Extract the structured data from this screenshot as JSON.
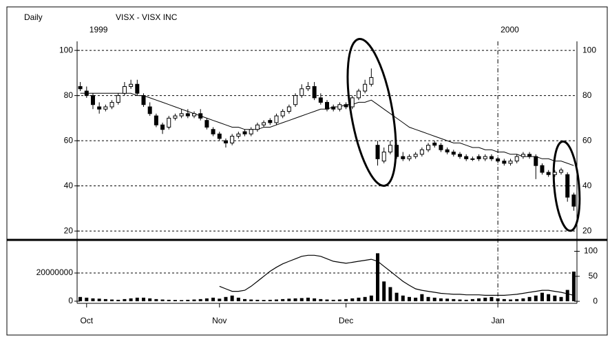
{
  "chart_data": [
    {
      "type": "candlestick",
      "period": "Daily",
      "title": "VISX - VISX INC",
      "xlim": [
        -0.5,
        78.5
      ],
      "xticks": [
        {
          "value": 1,
          "label": "Oct"
        },
        {
          "value": 22,
          "label": "Nov"
        },
        {
          "value": 42,
          "label": "Dec"
        },
        {
          "value": 66,
          "label": "Jan"
        }
      ],
      "year_ticks": [
        {
          "value": 1,
          "label": "1999"
        },
        {
          "value": 66,
          "label": "2000"
        }
      ],
      "ylim": [
        17,
        104
      ],
      "yticks": [
        20,
        40,
        60,
        80,
        100
      ],
      "grid": true,
      "color": "#000000",
      "open": [
        84,
        82,
        80,
        75,
        74,
        75,
        77,
        81,
        84,
        85,
        80,
        75,
        71,
        67,
        66,
        70,
        71,
        72,
        71,
        72,
        69,
        65,
        63,
        60,
        59,
        62,
        64,
        63,
        65,
        67,
        69,
        68,
        71,
        73,
        76,
        80,
        83,
        84,
        79,
        77,
        75,
        74,
        76,
        75,
        79,
        82,
        85,
        58,
        51,
        55,
        58,
        53,
        52,
        53,
        54,
        56,
        59,
        58,
        56,
        55,
        54,
        53,
        52,
        53,
        52,
        53,
        52,
        51,
        50,
        51,
        53,
        54,
        53,
        49,
        46,
        45,
        46,
        45,
        36
      ],
      "high": [
        86,
        84,
        81,
        77,
        76,
        78,
        81,
        86,
        87,
        87,
        81,
        77,
        72,
        68,
        71,
        72,
        74,
        74,
        73,
        74,
        70,
        66,
        64,
        61,
        63,
        64,
        65,
        66,
        68,
        69,
        70,
        72,
        74,
        76,
        81,
        85,
        86,
        86,
        81,
        78,
        76,
        77,
        77,
        80,
        83,
        87,
        92,
        60,
        57,
        60,
        59,
        55,
        54,
        55,
        57,
        59,
        60,
        59,
        57,
        56,
        55,
        54,
        53,
        54,
        54,
        54,
        53,
        52,
        52,
        54,
        55,
        55,
        54,
        50,
        47,
        47,
        48,
        46,
        37
      ],
      "low": [
        82,
        79,
        74,
        72,
        73,
        74,
        76,
        80,
        83,
        80,
        75,
        71,
        66,
        63,
        65,
        69,
        70,
        70,
        70,
        69,
        65,
        62,
        60,
        57,
        58,
        61,
        62,
        62,
        64,
        66,
        67,
        67,
        70,
        72,
        75,
        79,
        82,
        78,
        76,
        73,
        73,
        73,
        74,
        74,
        78,
        81,
        84,
        49,
        50,
        54,
        52,
        51,
        51,
        52,
        53,
        55,
        57,
        55,
        54,
        53,
        52,
        51,
        51,
        51,
        51,
        51,
        50,
        49,
        49,
        50,
        52,
        52,
        43,
        45,
        44,
        44,
        45,
        33,
        29
      ],
      "close": [
        83,
        80,
        76,
        74,
        75,
        77,
        80,
        84,
        85,
        81,
        76,
        72,
        67,
        65,
        70,
        71,
        72,
        71,
        72,
        70,
        66,
        63,
        61,
        59,
        62,
        63,
        63,
        65,
        67,
        68,
        68,
        71,
        73,
        75,
        80,
        83,
        84,
        79,
        77,
        74,
        74,
        76,
        75,
        79,
        82,
        85,
        88,
        52,
        55,
        58,
        53,
        52,
        53,
        54,
        56,
        58,
        58,
        56,
        55,
        54,
        53,
        52,
        52,
        52,
        53,
        52,
        51,
        50,
        51,
        53,
        54,
        53,
        49,
        46,
        45,
        46,
        47,
        35,
        31
      ],
      "moving_average": [
        81,
        81,
        81,
        81,
        81,
        81,
        81,
        81,
        81,
        80,
        80,
        79,
        78,
        77,
        76,
        75,
        74,
        73,
        72,
        71,
        70,
        69,
        68,
        67,
        66,
        66,
        65,
        65,
        65,
        66,
        66,
        67,
        68,
        69,
        70,
        71,
        72,
        73,
        74,
        74,
        75,
        75,
        76,
        76,
        77,
        77,
        78,
        76,
        74,
        72,
        70,
        68,
        66,
        65,
        64,
        63,
        62,
        61,
        60,
        59,
        59,
        58,
        57,
        57,
        56,
        56,
        55,
        55,
        54,
        54,
        53,
        53,
        53,
        52,
        52,
        51,
        51,
        50,
        49
      ]
    },
    {
      "type": "bar",
      "xlim": [
        -0.5,
        78.5
      ],
      "color": "#000000",
      "ylim": [
        -1500000,
        42500000
      ],
      "yticks": [
        0,
        20000000
      ],
      "y2lim": [
        -4,
        120
      ],
      "y2ticks": [
        0,
        50,
        100
      ],
      "grid": true,
      "values": [
        3000000,
        2500000,
        2000000,
        1800000,
        1500000,
        1200000,
        1000000,
        1500000,
        2000000,
        2500000,
        2500000,
        2000000,
        1500000,
        1200000,
        1000000,
        900000,
        800000,
        1000000,
        1200000,
        1500000,
        2000000,
        2500000,
        1800000,
        3000000,
        4000000,
        2500000,
        1500000,
        1200000,
        1000000,
        900000,
        1000000,
        1200000,
        1500000,
        1800000,
        2000000,
        2200000,
        2500000,
        2000000,
        1500000,
        1200000,
        1000000,
        1200000,
        1500000,
        2000000,
        2500000,
        3000000,
        4000000,
        34000000,
        14000000,
        10000000,
        6000000,
        4000000,
        3000000,
        2500000,
        5000000,
        3000000,
        2500000,
        2000000,
        1800000,
        1500000,
        1200000,
        1000000,
        1500000,
        2000000,
        2500000,
        3000000,
        2000000,
        1500000,
        1200000,
        1500000,
        2000000,
        3000000,
        4000000,
        6000000,
        5000000,
        4000000,
        3000000,
        8000000,
        21000000
      ],
      "line": {
        "axis": "y2",
        "values": [
          null,
          null,
          null,
          null,
          null,
          null,
          null,
          null,
          null,
          null,
          null,
          null,
          null,
          null,
          null,
          null,
          null,
          null,
          null,
          null,
          null,
          null,
          30,
          25,
          20,
          20,
          22,
          30,
          40,
          50,
          60,
          68,
          75,
          80,
          85,
          90,
          92,
          92,
          90,
          85,
          80,
          78,
          76,
          78,
          80,
          82,
          84,
          80,
          70,
          60,
          50,
          40,
          32,
          25,
          22,
          20,
          18,
          16,
          15,
          14,
          14,
          13,
          13,
          13,
          12,
          12,
          12,
          12,
          13,
          14,
          16,
          18,
          20,
          22,
          22,
          20,
          18,
          15,
          12
        ]
      }
    }
  ]
}
